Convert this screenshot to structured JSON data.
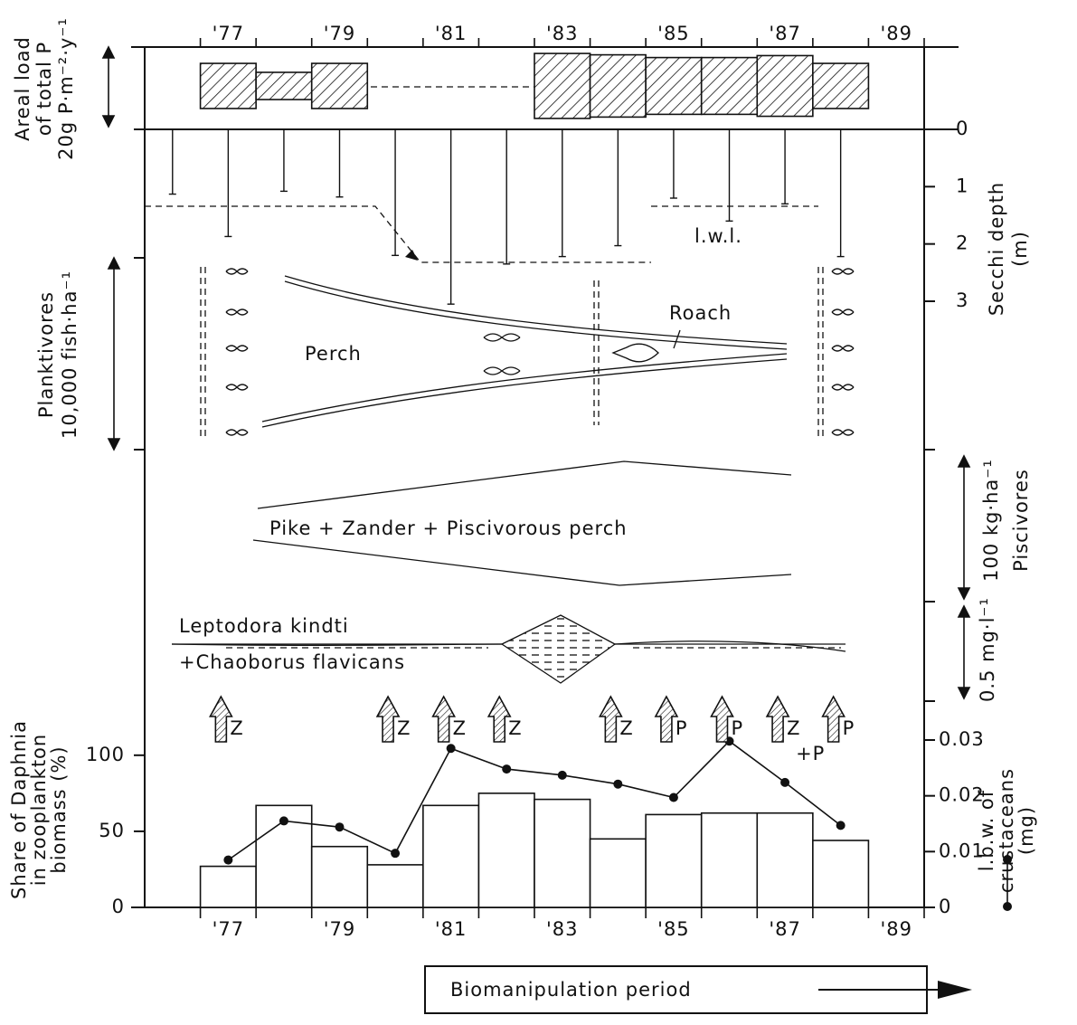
{
  "chart_data": [
    {
      "type": "bar",
      "ylabel": [
        "Areal load",
        "of total P",
        "20g P·m⁻²·y⁻¹"
      ],
      "x": [
        1977,
        1978,
        1979,
        1980,
        1981,
        1982,
        1983,
        1984,
        1985,
        1986,
        1987,
        1988
      ],
      "values": [
        11.6,
        7,
        11.6,
        null,
        null,
        null,
        16.7,
        16,
        14.6,
        14.6,
        15.6,
        11.6
      ],
      "xlim": [
        1975.5,
        1989.5
      ],
      "ylim": [
        0,
        20
      ],
      "xticks": [
        {
          "value": 1977,
          "label": "'77"
        },
        {
          "value": 1979,
          "label": "'79"
        },
        {
          "value": 1981,
          "label": "'81"
        },
        {
          "value": 1983,
          "label": "'83"
        },
        {
          "value": 1985,
          "label": "'85"
        },
        {
          "value": 1987,
          "label": "'87"
        },
        {
          "value": 1989,
          "label": "'89"
        }
      ]
    },
    {
      "type": "stem",
      "ylabel": [
        "Secchi depth",
        "(m)"
      ],
      "annotation": "l.w.l.",
      "x": [
        1976,
        1977,
        1978,
        1979,
        1980,
        1981,
        1982,
        1983,
        1984,
        1985,
        1986,
        1987,
        1988
      ],
      "values": [
        1.13,
        1.87,
        1.08,
        1.18,
        2.2,
        3.05,
        2.35,
        2.22,
        2.03,
        1.2,
        1.6,
        1.3,
        2.22
      ],
      "xlim": [
        1975.5,
        1989.5
      ],
      "ylim": [
        0,
        3
      ],
      "yticks": [
        0,
        1,
        2,
        3
      ]
    },
    {
      "type": "bar",
      "ylabel": [
        "Share of Daphnia",
        "in zooplankton",
        "biomass (%)"
      ],
      "y2label": [
        "l.b.w. of",
        "crustaceans",
        "(mg)"
      ],
      "x": [
        1977,
        1978,
        1979,
        1980,
        1981,
        1982,
        1983,
        1984,
        1985,
        1986,
        1987,
        1988
      ],
      "series": [
        {
          "values": [
            27,
            67,
            40,
            28,
            67,
            75,
            71,
            45,
            61,
            62,
            62,
            44
          ]
        },
        {
          "values": [
            0.0085,
            0.0155,
            0.0144,
            0.0097,
            0.0285,
            0.0248,
            0.0237,
            0.0221,
            0.0197,
            0.0298,
            0.0224,
            0.0147
          ],
          "axis": "y2"
        }
      ],
      "xlim": [
        1975.5,
        1989.5
      ],
      "ylim": [
        0,
        110
      ],
      "yticks": [
        0,
        50,
        100
      ],
      "y2lim": [
        0,
        0.03
      ],
      "y2ticks": [
        0,
        0.01,
        0.02,
        0.03
      ],
      "xticks": [
        {
          "value": 1977,
          "label": "'77"
        },
        {
          "value": 1979,
          "label": "'79"
        },
        {
          "value": 1981,
          "label": "'81"
        },
        {
          "value": 1983,
          "label": "'83"
        },
        {
          "value": 1985,
          "label": "'85"
        },
        {
          "value": 1987,
          "label": "'87"
        },
        {
          "value": 1989,
          "label": "'89"
        }
      ]
    }
  ],
  "annotations": {
    "planktivores": [
      "Planktivores",
      "10,000 fish·ha⁻¹"
    ],
    "perch": "Perch",
    "roach": "Roach",
    "piscivores": "Piscivores",
    "piscivore_scale": "100 kg·ha⁻¹",
    "piscivore_label": "Pike + Zander + Piscivorous perch",
    "invertebrates": [
      "Leptodora kindti",
      "+Chaoborus flavicans"
    ],
    "invertebrate_scale": "0.5 mg·l⁻¹",
    "manipulations": {
      "x": [
        1977,
        1980,
        1981,
        1982,
        1984,
        1985,
        1986,
        1987,
        1988
      ],
      "labels": [
        [
          "Z"
        ],
        [
          "Z"
        ],
        [
          "Z"
        ],
        [
          "Z"
        ],
        [
          "Z"
        ],
        [
          "P"
        ],
        [
          "P"
        ],
        [
          "Z",
          "+P"
        ],
        [
          "P"
        ]
      ]
    },
    "period": "Biomanipulation period"
  }
}
